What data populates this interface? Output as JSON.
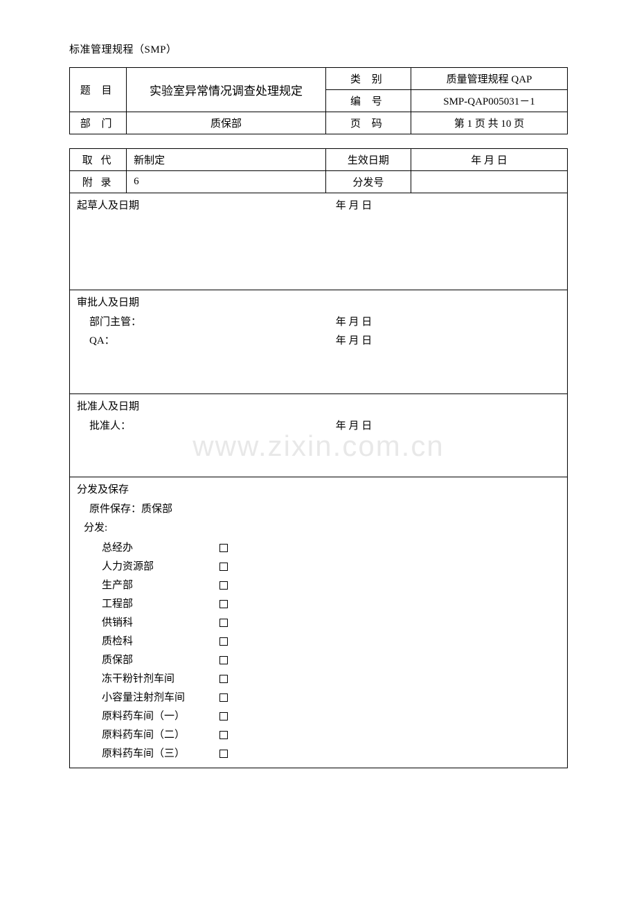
{
  "page_header": "标准管理规程（SMP）",
  "top_table": {
    "title_label": "题 目",
    "title_value": "实验室异常情况调查处理规定",
    "category_label": "类  别",
    "category_value": "质量管理规程  QAP",
    "number_label": "编  号",
    "number_value": "SMP-QAP005031－1",
    "dept_label": "部 门",
    "dept_value": "质保部",
    "page_label": "页  码",
    "page_value": "第 1 页 共 10 页"
  },
  "second_table": {
    "replace_label": "取 代",
    "replace_value": "新制定",
    "effective_label": "生效日期",
    "effective_value": "年      月      日",
    "appendix_label": "附 录",
    "appendix_value": "6",
    "dispatch_label": "分发号",
    "dispatch_value": ""
  },
  "sections": {
    "drafter": {
      "heading": "起草人及日期",
      "date": "年          月          日"
    },
    "reviewer": {
      "heading": "审批人及日期",
      "line1_label": "部门主管：",
      "line1_date": "年          月          日",
      "line2_label": "QA：",
      "line2_date": "年          月          日"
    },
    "approver": {
      "heading": "批准人及日期",
      "line_label": "批准人：",
      "line_date": "年          月          日"
    },
    "distribution": {
      "heading": "分发及保存",
      "original_keep": "原件保存：质保部",
      "dispatch_label": "分发:",
      "items": [
        "总经办",
        "人力资源部",
        "生产部",
        "工程部",
        "供销科",
        "质检科",
        "质保部",
        "冻干粉针剂车间",
        "小容量注射剂车间",
        "原料药车间（一）",
        "原料药车间（二）",
        "原料药车间（三）"
      ]
    }
  },
  "watermark": "www.zixin.com.cn",
  "colors": {
    "border": "#000000",
    "background": "#ffffff",
    "text": "#000000",
    "watermark": "#e8e8e8"
  }
}
